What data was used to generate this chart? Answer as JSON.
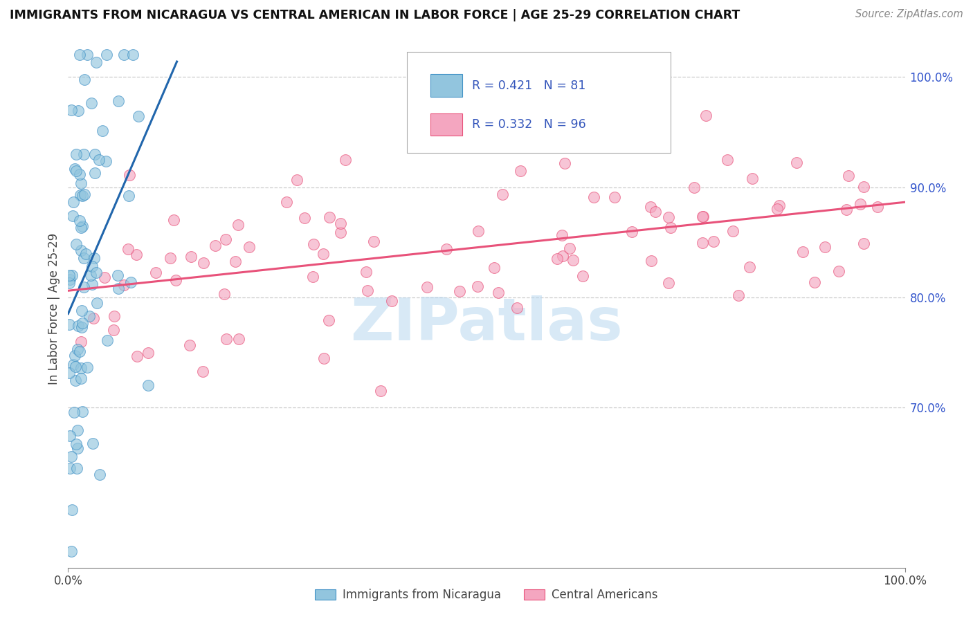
{
  "title": "IMMIGRANTS FROM NICARAGUA VS CENTRAL AMERICAN IN LABOR FORCE | AGE 25-29 CORRELATION CHART",
  "source": "Source: ZipAtlas.com",
  "ylabel": "In Labor Force | Age 25-29",
  "legend_label1": "Immigrants from Nicaragua",
  "legend_label2": "Central Americans",
  "R1": 0.421,
  "N1": 81,
  "R2": 0.332,
  "N2": 96,
  "color1": "#92c5de",
  "color2": "#f4a6c0",
  "trendline1_color": "#2166ac",
  "trendline2_color": "#e8527a",
  "legend_text_color": "#3355bb",
  "watermark_text": "ZIPatlas",
  "watermark_color": "#b8d8f0",
  "grid_color": "#cccccc",
  "right_tick_color": "#3355cc",
  "ylim_min": 0.555,
  "ylim_max": 1.025,
  "xlim_min": 0.0,
  "xlim_max": 1.0,
  "yticks": [
    0.7,
    0.8,
    0.9,
    1.0
  ],
  "ytick_labels": [
    "70.0%",
    "80.0%",
    "90.0%",
    "100.0%"
  ],
  "xtick_positions": [
    0.0,
    1.0
  ],
  "xtick_labels": [
    "0.0%",
    "100.0%"
  ]
}
